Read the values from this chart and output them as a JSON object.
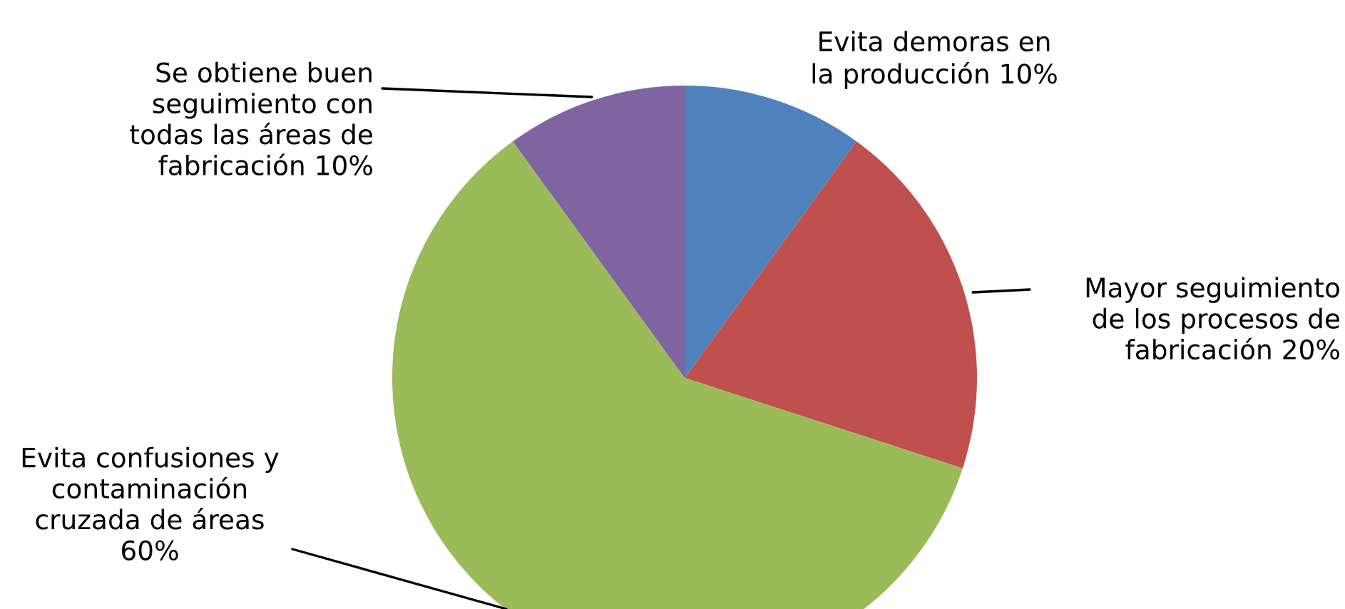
{
  "chart_data": {
    "type": "pie",
    "categories": [
      "Evita demoras en\nla producción",
      "Mayor seguimiento\nde los procesos de\nfabricación",
      "Evita confusiones y\ncontaminación\ncruzada de áreas",
      "Se obtiene buen\nseguimiento con\ntodas las áreas de\nfabricación"
    ],
    "values": [
      10,
      20,
      60,
      10
    ],
    "colors": [
      "#4f81bd",
      "#c0504d",
      "#9bbb59",
      "#8064a2"
    ],
    "value_labels": [
      "10%",
      "20%",
      "60%",
      "10%"
    ],
    "legend": false
  }
}
